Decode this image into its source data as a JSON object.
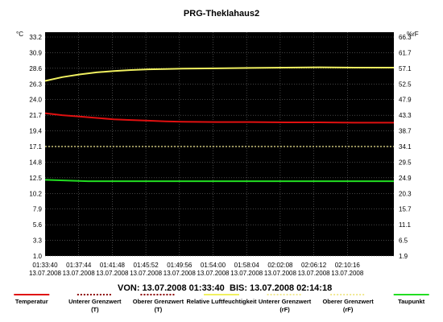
{
  "chart_data": {
    "type": "line",
    "title": "PRG-Theklahaus2",
    "left_unit": "°C",
    "right_unit": "%rF",
    "range_from": "VON: 13.07.2008 01:33:40",
    "range_to": "BIS: 13.07.2008 02:14:18",
    "left_ticks": [
      "33.2",
      "30.9",
      "28.6",
      "26.3",
      "24.0",
      "21.7",
      "19.4",
      "17.1",
      "14.8",
      "12.5",
      "10.2",
      "7.9",
      "5.6",
      "3.3",
      "1.0"
    ],
    "right_ticks": [
      "66.3",
      "61.7",
      "57.1",
      "52.5",
      "47.9",
      "43.3",
      "38.7",
      "34.1",
      "29.5",
      "24.9",
      "20.3",
      "15.7",
      "11.1",
      "6.5",
      "1.9"
    ],
    "ylim_left": [
      1.0,
      33.2
    ],
    "ylim_right": [
      1.9,
      66.3
    ],
    "x_ticks": [
      {
        "time": "01:33:40",
        "date": "13.07.2008"
      },
      {
        "time": "01:37:44",
        "date": "13.07.2008"
      },
      {
        "time": "01:41:48",
        "date": "13.07.2008"
      },
      {
        "time": "01:45:52",
        "date": "13.07.2008"
      },
      {
        "time": "01:49:56",
        "date": "13.07.2008"
      },
      {
        "time": "01:54:00",
        "date": "13.07.2008"
      },
      {
        "time": "01:58:04",
        "date": "13.07.2008"
      },
      {
        "time": "02:02:08",
        "date": "13.07.2008"
      },
      {
        "time": "02:06:12",
        "date": "13.07.2008"
      },
      {
        "time": "02:10:16",
        "date": "13.07.2008"
      }
    ],
    "x_range_minutes": [
      0,
      40.633
    ],
    "grid": true,
    "legend_placement": "bottom",
    "series": [
      {
        "name": "Temperatur",
        "axis": "left",
        "color": "#e01010",
        "style": "solid",
        "x": [
          0,
          2,
          4,
          6,
          8,
          10,
          12,
          14,
          16,
          20,
          24,
          28,
          32,
          36,
          40.633
        ],
        "y": [
          22.0,
          21.7,
          21.5,
          21.3,
          21.1,
          21.0,
          20.9,
          20.8,
          20.75,
          20.7,
          20.7,
          20.65,
          20.65,
          20.6,
          20.6
        ]
      },
      {
        "name": "Unterer Grenzwert\n(T)",
        "axis": "left",
        "color": "#8b0000",
        "style": "dotted",
        "x": [],
        "y": []
      },
      {
        "name": "Oberer Grenzwert\n(T)",
        "axis": "left",
        "color": "#8b0000",
        "style": "dotted",
        "x": [],
        "y": []
      },
      {
        "name": "Relative Luftfeuchtigkeit",
        "axis": "right",
        "color": "#f0f060",
        "style": "solid",
        "x": [
          0,
          2,
          4,
          6,
          8,
          10,
          12,
          14,
          16,
          20,
          24,
          28,
          32,
          36,
          40.633
        ],
        "y": [
          53.4,
          54.5,
          55.3,
          55.9,
          56.3,
          56.6,
          56.8,
          56.9,
          57.0,
          57.1,
          57.2,
          57.3,
          57.4,
          57.3,
          57.3
        ]
      },
      {
        "name": "Unterer Grenzwert\n(rF)",
        "axis": "right",
        "color": "#f0e890",
        "style": "dotted",
        "x": [
          0,
          40.633
        ],
        "y": [
          34.1,
          34.1
        ]
      },
      {
        "name": "Oberer Grenzwert\n(rF)",
        "axis": "right",
        "color": "#f0e890",
        "style": "dotted",
        "x": [],
        "y": []
      },
      {
        "name": "Taupunkt",
        "axis": "left",
        "color": "#22dd22",
        "style": "solid",
        "x": [
          0,
          5,
          10,
          15,
          20,
          25,
          30,
          35,
          40.633
        ],
        "y": [
          12.2,
          12.0,
          12.0,
          12.0,
          12.0,
          12.0,
          12.0,
          12.0,
          12.0
        ]
      }
    ]
  }
}
